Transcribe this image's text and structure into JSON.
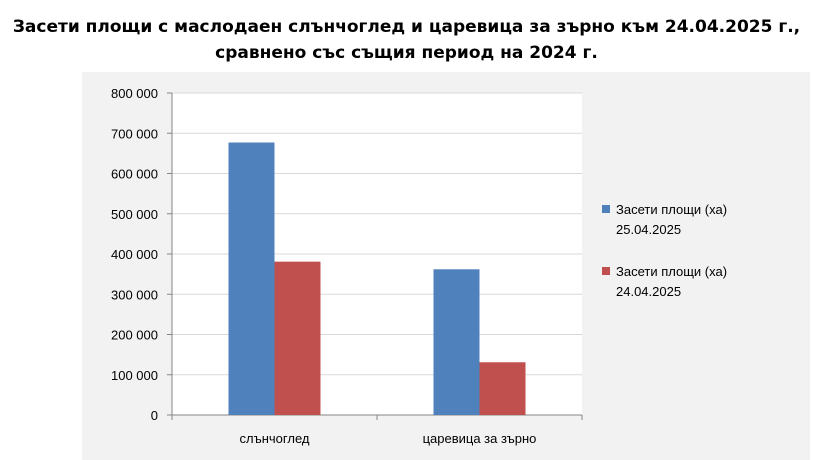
{
  "title_line1": "Засети площи с маслодаен слънчоглед и царевица за зърно към 24.04.2025 г.,",
  "title_line2": "сравнено със същия период на 2024 г.",
  "chart_data": {
    "type": "bar",
    "categories": [
      "слънчоглед",
      "царевица за зърно"
    ],
    "series": [
      {
        "name": "Засети площи (ха) 25.04.2025",
        "name_line1": "Засети площи (ха)",
        "name_line2": "25.04.2025",
        "color": "#4f81bd",
        "values": [
          677000,
          362000
        ]
      },
      {
        "name": "Засети площи (ха) 24.04.2025",
        "name_line1": "Засети площи (ха)",
        "name_line2": "24.04.2025",
        "color": "#c0504d",
        "values": [
          381000,
          131000
        ]
      }
    ],
    "ylim": [
      0,
      800000
    ],
    "yticks": [
      0,
      100000,
      200000,
      300000,
      400000,
      500000,
      600000,
      700000,
      800000
    ],
    "ytick_labels": [
      "0",
      "100 000",
      "200 000",
      "300 000",
      "400 000",
      "500 000",
      "600 000",
      "700 000",
      "800 000"
    ],
    "grid": true,
    "legend_position": "right"
  }
}
